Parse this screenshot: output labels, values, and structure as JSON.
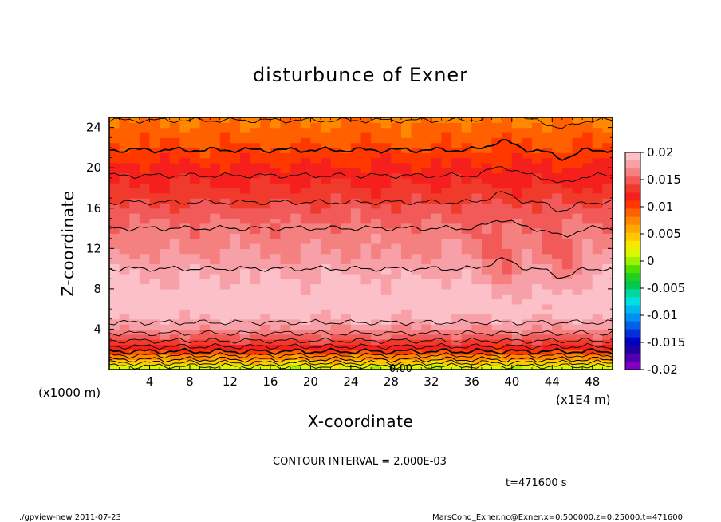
{
  "chart_data": {
    "type": "heatmap",
    "title": "disturbunce of Exner",
    "xlabel": "X-coordinate",
    "ylabel": "Z-coordinate",
    "x_unit": "(x1E4 m)",
    "y_unit": "(x1000 m)",
    "xlim": [
      0,
      50
    ],
    "ylim": [
      0,
      25
    ],
    "xticks": [
      4,
      8,
      12,
      16,
      20,
      24,
      28,
      32,
      36,
      40,
      44,
      48
    ],
    "yticks": [
      4,
      8,
      12,
      16,
      20,
      24
    ],
    "zero_label": "0.00",
    "colorbar": {
      "ticks": [
        0.02,
        0.015,
        0.01,
        0.005,
        0,
        -0.005,
        -0.01,
        -0.015,
        -0.02
      ],
      "tick_labels": [
        "0.02",
        "0.015",
        "0.01",
        "0.005",
        "0",
        "-0.005",
        "-0.01",
        "-0.015",
        "-0.02"
      ],
      "range": [
        -0.02,
        0.02
      ],
      "colors_top_to_bottom": [
        "#fbc0c8",
        "#f8a0a8",
        "#f58080",
        "#f25a5a",
        "#f03a2c",
        "#f5201e",
        "#ff3800",
        "#ff6000",
        "#ff8800",
        "#ffa800",
        "#ffc800",
        "#f8e800",
        "#d8f800",
        "#a0f000",
        "#50e000",
        "#20d020",
        "#00c850",
        "#00d8a0",
        "#00e0e0",
        "#00b8f0",
        "#0090f0",
        "#0060e8",
        "#0030d8",
        "#0000c0",
        "#2000a0",
        "#5000b0",
        "#8000c0"
      ]
    },
    "profile_by_height": {
      "z": [
        0,
        1,
        2,
        3,
        4,
        5,
        6,
        7,
        8,
        10,
        12,
        14,
        16,
        18,
        20,
        22,
        24,
        25
      ],
      "value": [
        0.0,
        0.006,
        0.011,
        0.0145,
        0.017,
        0.0185,
        0.0195,
        0.0197,
        0.0192,
        0.018,
        0.0168,
        0.016,
        0.0145,
        0.0128,
        0.0115,
        0.0098,
        0.0085,
        0.0078
      ]
    },
    "contour_interval_label": "CONTOUR INTERVAL = 2.000E-03",
    "time_label": "t=471600 s"
  },
  "footer": {
    "left": "./gpview-new   2011-07-23",
    "right": "MarsCond_Exner.nc@Exner,x=0:500000,z=0:25000,t=471600"
  }
}
